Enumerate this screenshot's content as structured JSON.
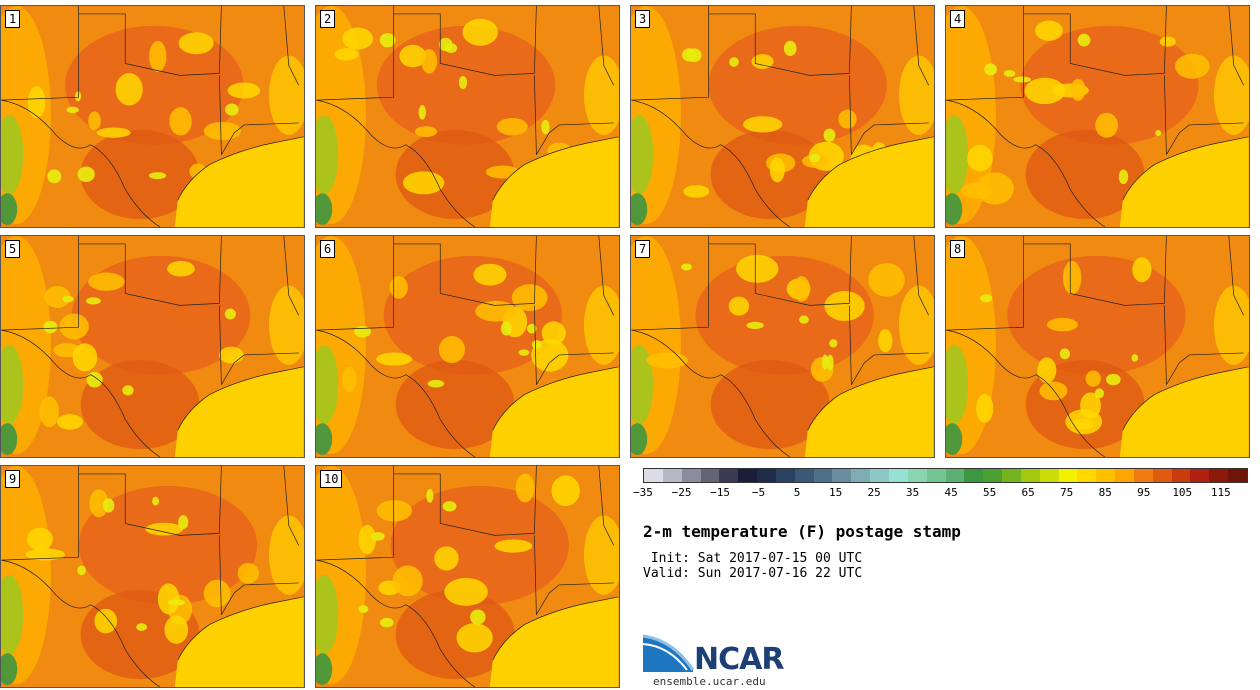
{
  "members": [
    {
      "label": "1"
    },
    {
      "label": "2"
    },
    {
      "label": "3"
    },
    {
      "label": "4"
    },
    {
      "label": "5"
    },
    {
      "label": "6"
    },
    {
      "label": "7"
    },
    {
      "label": "8"
    },
    {
      "label": "9"
    },
    {
      "label": "10"
    }
  ],
  "colorbar": {
    "tick_labels": [
      "−35",
      "−25",
      "−15",
      "−5",
      "5",
      "15",
      "25",
      "35",
      "45",
      "55",
      "65",
      "75",
      "85",
      "95",
      "105",
      "115"
    ],
    "colors": [
      "#dcdce4",
      "#b8b8c4",
      "#8c8ca0",
      "#646478",
      "#3a3a52",
      "#1a1e3a",
      "#1e2c4a",
      "#2c4262",
      "#3a5878",
      "#4e7088",
      "#6a8ea0",
      "#7eacb4",
      "#8cc8c6",
      "#96e0d4",
      "#8cd4b0",
      "#74c494",
      "#5cb072",
      "#3e9640",
      "#4ca032",
      "#74b41e",
      "#a2c810",
      "#ccde0a",
      "#f4f000",
      "#ffd800",
      "#ffc000",
      "#ffa400",
      "#f07c10",
      "#e05a10",
      "#cc3a10",
      "#b02010",
      "#8c1a0a",
      "#6e1408"
    ]
  },
  "title": "2-m temperature (F) postage stamp",
  "init_line": " Init: Sat 2017-07-15 00 UTC",
  "valid_line": "Valid: Sun 2017-07-16 22 UTC",
  "logo": {
    "name": "NCAR",
    "url": "ensemble.ucar.edu"
  }
}
